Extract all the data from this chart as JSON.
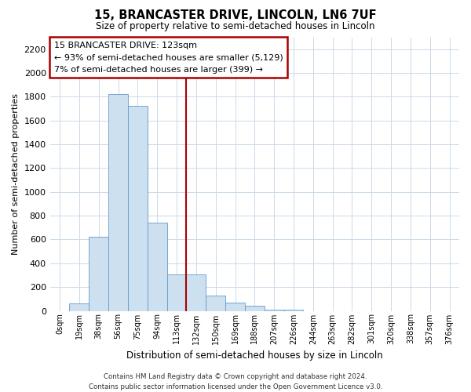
{
  "title": "15, BRANCASTER DRIVE, LINCOLN, LN6 7UF",
  "subtitle": "Size of property relative to semi-detached houses in Lincoln",
  "xlabel": "Distribution of semi-detached houses by size in Lincoln",
  "ylabel": "Number of semi-detached properties",
  "bar_labels": [
    "0sqm",
    "19sqm",
    "38sqm",
    "56sqm",
    "75sqm",
    "94sqm",
    "113sqm",
    "132sqm",
    "150sqm",
    "169sqm",
    "188sqm",
    "207sqm",
    "226sqm",
    "244sqm",
    "263sqm",
    "282sqm",
    "301sqm",
    "320sqm",
    "338sqm",
    "357sqm",
    "376sqm"
  ],
  "bar_values": [
    0,
    60,
    625,
    1825,
    1725,
    740,
    305,
    305,
    130,
    70,
    40,
    10,
    10,
    0,
    0,
    0,
    0,
    0,
    0,
    0,
    0
  ],
  "bar_color": "#cce0f0",
  "bar_edge_color": "#6699cc",
  "highlight_line_color": "#aa0000",
  "annotation_title": "15 BRANCASTER DRIVE: 123sqm",
  "annotation_line1": "← 93% of semi-detached houses are smaller (5,129)",
  "annotation_line2": "7% of semi-detached houses are larger (399) →",
  "annotation_box_color": "#ffffff",
  "annotation_box_edge": "#aa0000",
  "ylim": [
    0,
    2300
  ],
  "yticks": [
    0,
    200,
    400,
    600,
    800,
    1000,
    1200,
    1400,
    1600,
    1800,
    2000,
    2200
  ],
  "footer_line1": "Contains HM Land Registry data © Crown copyright and database right 2024.",
  "footer_line2": "Contains public sector information licensed under the Open Government Licence v3.0.",
  "background_color": "#ffffff",
  "grid_color": "#ccd9e8"
}
